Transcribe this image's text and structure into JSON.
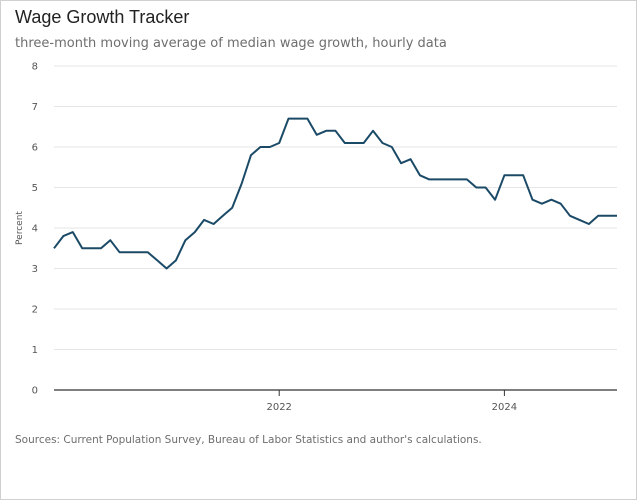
{
  "chart_data": {
    "type": "line",
    "title": "Wage Growth Tracker",
    "subtitle": "three-month moving average of median wage growth, hourly data",
    "ylabel": "Percent",
    "xlabel": "",
    "ylim": [
      0,
      8
    ],
    "yticks": [
      0,
      1,
      2,
      3,
      4,
      5,
      6,
      7,
      8
    ],
    "xticks": [
      {
        "x": 2022,
        "label": "2022"
      },
      {
        "x": 2024,
        "label": "2024"
      }
    ],
    "xlim": [
      2020.0,
      2025.0
    ],
    "grid": true,
    "line_color": "#1b4a67",
    "series": [
      {
        "x": [
          2020.0,
          2020.083,
          2020.167,
          2020.25,
          2020.333,
          2020.417,
          2020.5,
          2020.583,
          2020.667,
          2020.75,
          2020.833,
          2020.917,
          2021.0,
          2021.083,
          2021.167,
          2021.25,
          2021.333,
          2021.417,
          2021.5,
          2021.583,
          2021.667,
          2021.75,
          2021.833,
          2021.917,
          2022.0,
          2022.083,
          2022.167,
          2022.25,
          2022.333,
          2022.417,
          2022.5,
          2022.583,
          2022.667,
          2022.75,
          2022.833,
          2022.917,
          2023.0,
          2023.083,
          2023.167,
          2023.25,
          2023.333,
          2023.417,
          2023.5,
          2023.583,
          2023.667,
          2023.75,
          2023.833,
          2023.917,
          2024.0,
          2024.083,
          2024.167,
          2024.25,
          2024.333,
          2024.417,
          2024.5,
          2024.583,
          2024.667,
          2024.75,
          2024.833,
          2024.917,
          2025.0
        ],
        "values": [
          3.5,
          3.8,
          3.9,
          3.5,
          3.5,
          3.5,
          3.7,
          3.4,
          3.4,
          3.4,
          3.4,
          3.2,
          3.0,
          3.2,
          3.7,
          3.9,
          4.2,
          4.1,
          4.3,
          4.5,
          5.1,
          5.8,
          6.0,
          6.0,
          6.1,
          6.7,
          6.7,
          6.7,
          6.3,
          6.4,
          6.4,
          6.1,
          6.1,
          6.1,
          6.4,
          6.1,
          6.0,
          5.6,
          5.7,
          5.3,
          5.2,
          5.2,
          5.2,
          5.2,
          5.2,
          5.0,
          5.0,
          4.7,
          5.3,
          5.3,
          5.3,
          4.7,
          4.6,
          4.7,
          4.6,
          4.3,
          4.2,
          4.1,
          4.3,
          4.3,
          4.3
        ]
      }
    ]
  },
  "footer": {
    "source": "Sources: Current Population Survey, Bureau of Labor Statistics and author's calculations."
  }
}
